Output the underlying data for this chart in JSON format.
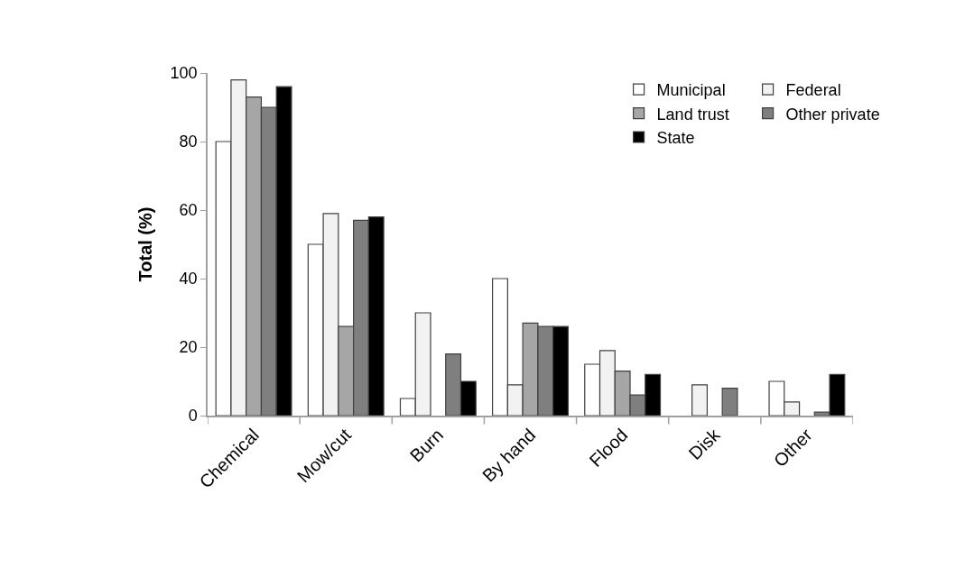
{
  "chart_data": {
    "type": "bar",
    "ylabel": "Total (%)",
    "categories": [
      "Chemical",
      "Mow/cut",
      "Burn",
      "By hand",
      "Flood",
      "Disk",
      "Other"
    ],
    "series": [
      {
        "name": "Municipal",
        "color": "#ffffff",
        "values": [
          80,
          50,
          5,
          40,
          15,
          null,
          10
        ]
      },
      {
        "name": "Federal",
        "color": "#f2f2f2",
        "values": [
          98,
          59,
          30,
          9,
          19,
          9,
          4
        ]
      },
      {
        "name": "Land trust",
        "color": "#a6a6a6",
        "values": [
          93,
          26,
          null,
          27,
          13,
          null,
          null
        ]
      },
      {
        "name": "Other private",
        "color": "#7f7f7f",
        "values": [
          90,
          57,
          18,
          26,
          6,
          8,
          1
        ]
      },
      {
        "name": "State",
        "color": "#000000",
        "values": [
          96,
          58,
          10,
          26,
          12,
          null,
          12
        ]
      }
    ],
    "ylim": [
      0,
      100
    ],
    "yticks": [
      0,
      20,
      40,
      60,
      80,
      100
    ],
    "legend": "top right"
  }
}
